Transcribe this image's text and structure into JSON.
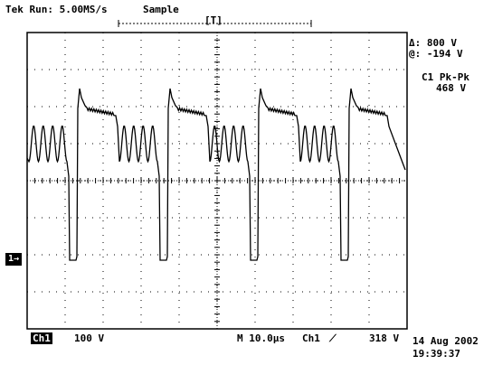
{
  "status": {
    "mode": "Tek Run: 5.00MS/s",
    "acquisition": "Sample",
    "trigger_marker": "[T]"
  },
  "cursors": {
    "delta_label": "Δ: 800 V",
    "at_label": "@: -194 V"
  },
  "measurement": {
    "name": "C1 Pk-Pk",
    "value": "468 V"
  },
  "footer": {
    "channel_badge": "Ch1",
    "volts_per_div": "100 V",
    "timebase": "M 10.0µs",
    "trigger_source": "Ch1",
    "trigger_slope_icon": "rising-edge-icon",
    "trigger_level": "318 V",
    "date": "14 Aug 2002",
    "time": "19:39:37"
  },
  "ground_marker": "1→",
  "colors": {
    "trace": "#000000",
    "background": "#ffffff",
    "grid": "#000000"
  }
}
